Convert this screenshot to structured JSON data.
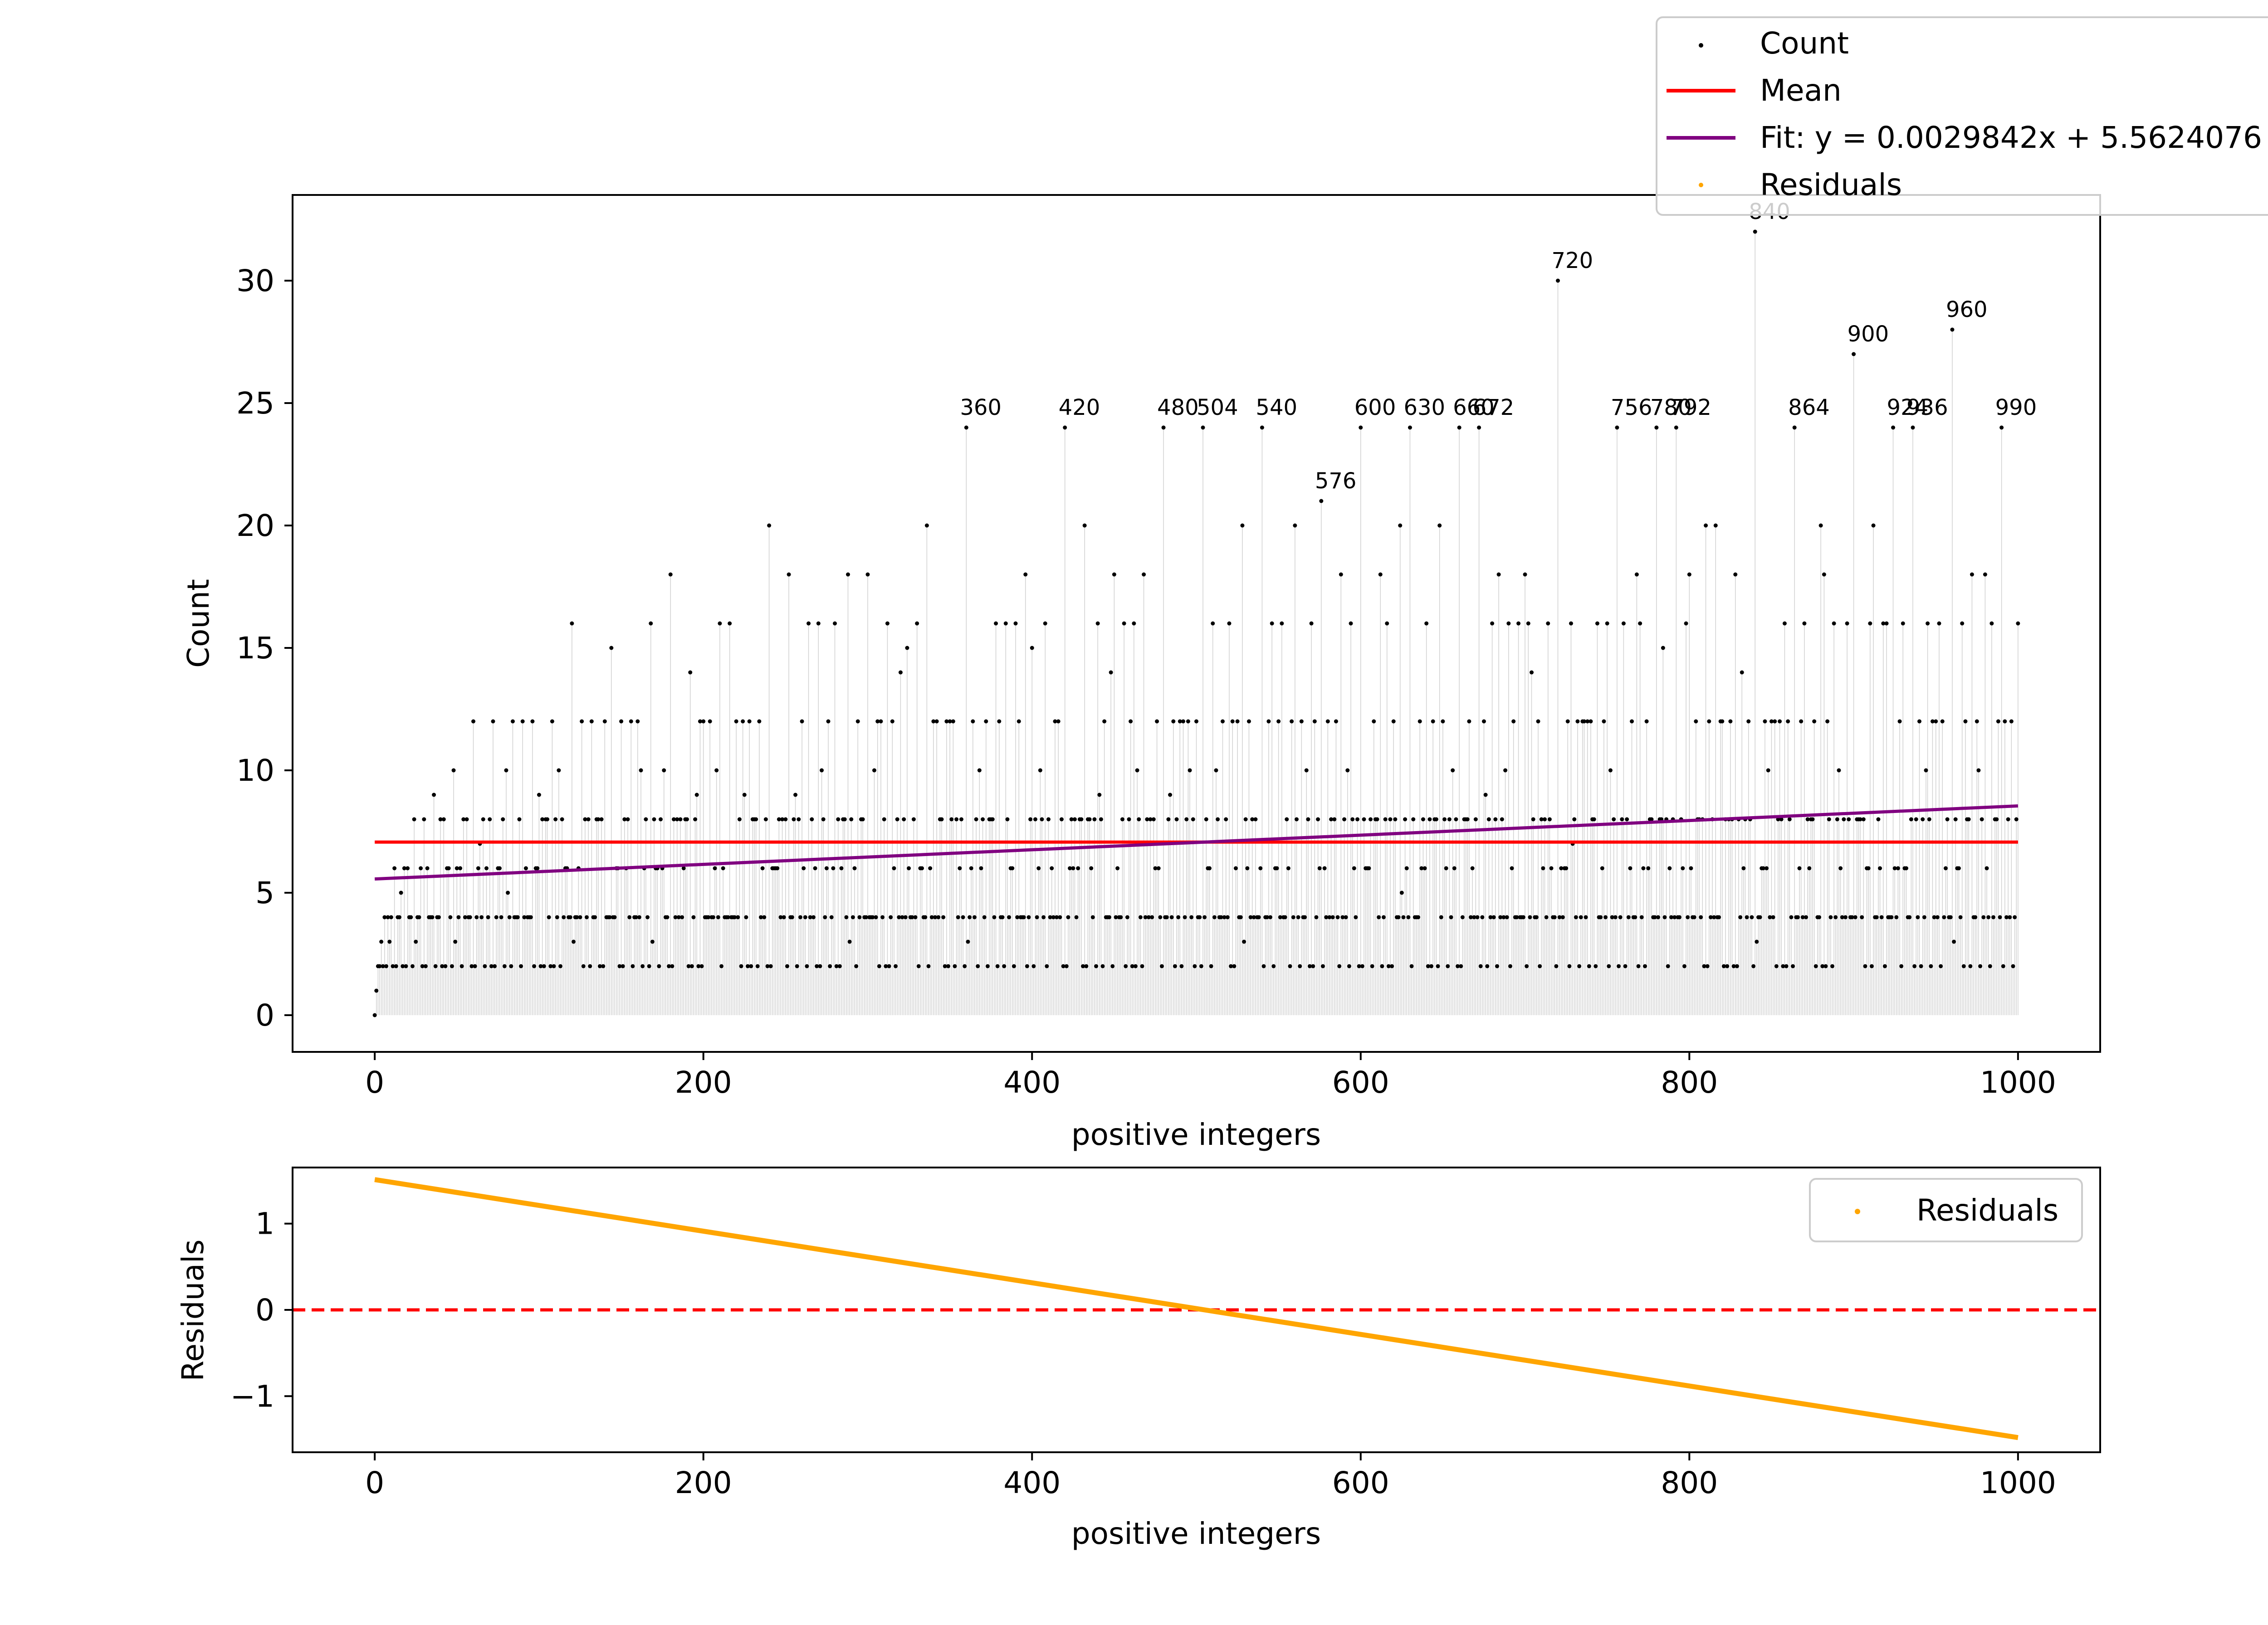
{
  "chart_data": [
    {
      "type": "scatter",
      "xlabel": "positive integers",
      "ylabel": "Count",
      "xlim": [
        -50,
        1050
      ],
      "ylim": [
        -1.5,
        33.5
      ],
      "xticks": [
        0,
        200,
        400,
        600,
        800,
        1000
      ],
      "yticks": [
        0,
        5,
        10,
        15,
        20,
        25,
        30
      ],
      "grid": false,
      "legend_position": "top-right, outside above the axes",
      "legend": [
        "Count",
        "Mean",
        "Fit: y = 0.0029842x + 5.5624076",
        "Residuals"
      ],
      "series": [
        {
          "name": "Count",
          "kind": "scatter-with-stems",
          "color": "#000000",
          "stem_color": "#d0d0d0",
          "x_range": [
            0,
            1000
          ],
          "value_rule": "y(n) = number of divisors of n; y(0) = 0",
          "annotated_points": [
            {
              "x": 360,
              "y": 24,
              "label": "360"
            },
            {
              "x": 420,
              "y": 24,
              "label": "420"
            },
            {
              "x": 480,
              "y": 24,
              "label": "480"
            },
            {
              "x": 504,
              "y": 24,
              "label": "504"
            },
            {
              "x": 540,
              "y": 24,
              "label": "540"
            },
            {
              "x": 576,
              "y": 21,
              "label": "576"
            },
            {
              "x": 600,
              "y": 24,
              "label": "600"
            },
            {
              "x": 630,
              "y": 24,
              "label": "630"
            },
            {
              "x": 660,
              "y": 24,
              "label": "660"
            },
            {
              "x": 672,
              "y": 24,
              "label": "672"
            },
            {
              "x": 720,
              "y": 30,
              "label": "720"
            },
            {
              "x": 756,
              "y": 24,
              "label": "756"
            },
            {
              "x": 780,
              "y": 24,
              "label": "780"
            },
            {
              "x": 792,
              "y": 24,
              "label": "792"
            },
            {
              "x": 840,
              "y": 32,
              "label": "840"
            },
            {
              "x": 864,
              "y": 24,
              "label": "864"
            },
            {
              "x": 900,
              "y": 27,
              "label": "900"
            },
            {
              "x": 924,
              "y": 24,
              "label": "924"
            },
            {
              "x": 936,
              "y": 24,
              "label": "936"
            },
            {
              "x": 960,
              "y": 28,
              "label": "960"
            },
            {
              "x": 990,
              "y": 24,
              "label": "990"
            }
          ]
        },
        {
          "name": "Mean",
          "kind": "line",
          "color": "#ff0000",
          "x": [
            0,
            1000
          ],
          "y": [
            7.07,
            7.07
          ]
        },
        {
          "name": "Fit: y = 0.0029842x + 5.5624076",
          "kind": "line",
          "color": "#800080",
          "slope": 0.0029842,
          "intercept": 5.5624076,
          "x": [
            0,
            1000
          ]
        }
      ]
    },
    {
      "type": "line",
      "xlabel": "positive integers",
      "ylabel": "Residuals",
      "xlim": [
        -50,
        1050
      ],
      "ylim": [
        -1.65,
        1.65
      ],
      "xticks": [
        0,
        200,
        400,
        600,
        800,
        1000
      ],
      "yticks": [
        1,
        0,
        -1
      ],
      "ytick_labels": [
        "1",
        "0",
        "−1"
      ],
      "grid": false,
      "legend_position": "upper right",
      "legend": [
        "Residuals"
      ],
      "series": [
        {
          "name": "Residuals",
          "kind": "line",
          "color": "#ffa500",
          "x": [
            0,
            1000
          ],
          "y": [
            1.51,
            -1.48
          ]
        }
      ],
      "reference_line": {
        "y": 0,
        "color": "#ff0000",
        "style": "dashed"
      }
    }
  ]
}
